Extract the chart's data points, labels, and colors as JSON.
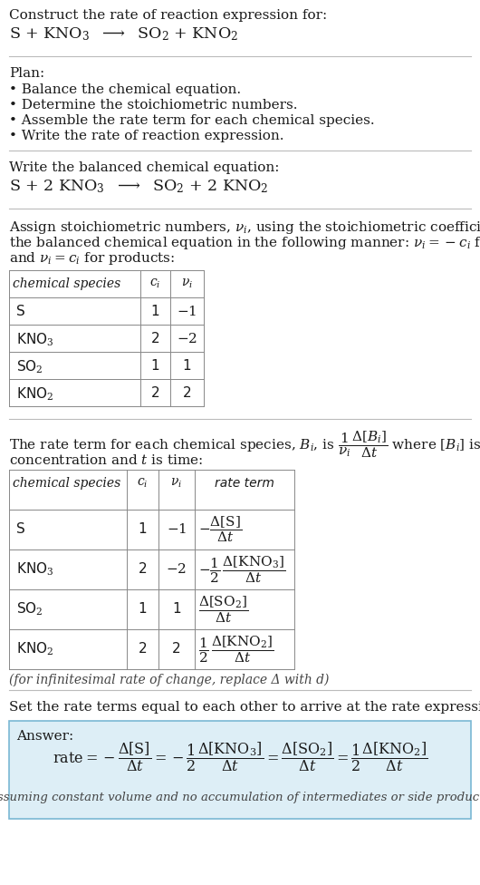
{
  "bg_color": "#ffffff",
  "text_color": "#1a1a1a",
  "gray_text": "#444444",
  "light_blue_bg": "#ddeef6",
  "blue_border": "#7ab8d4",
  "table_border": "#888888",
  "title_line1": "Construct the rate of reaction expression for:",
  "plan_header": "Plan:",
  "plan_items": [
    "• Balance the chemical equation.",
    "• Determine the stoichiometric numbers.",
    "• Assemble the rate term for each chemical species.",
    "• Write the rate of reaction expression."
  ],
  "balanced_header": "Write the balanced chemical equation:",
  "set_equal_header": "Set the rate terms equal to each other to arrive at the rate expression:",
  "answer_label": "Answer:",
  "footnote": "(assuming constant volume and no accumulation of intermediates or side products)",
  "infinitesimal_note": "(for infinitesimal rate of change, replace Δ with d)"
}
